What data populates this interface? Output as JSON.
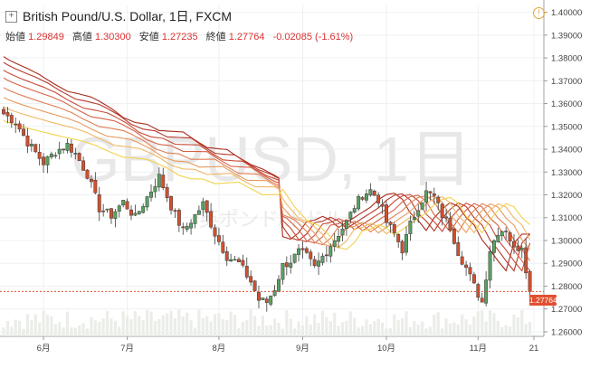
{
  "header": {
    "title": "British Pound/U.S. Dollar, 1日, FXCM",
    "open_label": "始値",
    "open": "1.29849",
    "high_label": "高値",
    "high": "1.30300",
    "low_label": "安値",
    "low": "1.27235",
    "close_label": "終値",
    "close": "1.27764",
    "change": "-0.02085 (-1.61%)"
  },
  "watermark": {
    "symbol": "GBPUSD, 1日",
    "subtitle": "英ポンド/米ドル"
  },
  "last_price_tag": "1.27764",
  "colors": {
    "up": "#5aa062",
    "down": "#d0502e",
    "ribbon_far": "#b03320",
    "ribbon_near": "#f2d24a",
    "grid": "#eef0f3",
    "price_line": "#e05030"
  },
  "icons": {
    "expand": "expand-icon",
    "alert": "alert-icon"
  },
  "chart_data": {
    "type": "candlestick",
    "y_axis": {
      "ticks": [
        "1.40000",
        "1.39000",
        "1.38000",
        "1.37000",
        "1.36000",
        "1.35000",
        "1.34000",
        "1.33000",
        "1.32000",
        "1.31000",
        "1.30000",
        "1.29000",
        "1.28000",
        "1.27000",
        "1.26000"
      ],
      "ylim": [
        1.258,
        1.403
      ]
    },
    "x_axis": {
      "ticks": [
        {
          "label": "6月",
          "index": 10
        },
        {
          "label": "7月",
          "index": 31
        },
        {
          "label": "8月",
          "index": 54
        },
        {
          "label": "9月",
          "index": 75
        },
        {
          "label": "10月",
          "index": 96
        },
        {
          "label": "11月",
          "index": 119
        },
        {
          "label": "21",
          "index": 133
        }
      ],
      "bar_count": 133
    },
    "ribbon": [
      {
        "shade": 0,
        "start": 1.385,
        "end": 1.3002
      },
      {
        "shade": 1,
        "start": 1.382,
        "end": 1.3
      },
      {
        "shade": 2,
        "start": 1.378,
        "end": 1.2998
      },
      {
        "shade": 3,
        "start": 1.374,
        "end": 1.2996
      },
      {
        "shade": 4,
        "start": 1.369,
        "end": 1.2994
      },
      {
        "shade": 5,
        "start": 1.364,
        "end": 1.2992
      },
      {
        "shade": 6,
        "start": 1.359,
        "end": 1.299
      },
      {
        "shade": 7,
        "start": 1.352,
        "end": 1.2988
      }
    ],
    "close_anchors": [
      [
        0,
        1.3555
      ],
      [
        3,
        1.352
      ],
      [
        6,
        1.343
      ],
      [
        10,
        1.334
      ],
      [
        13,
        1.339
      ],
      [
        16,
        1.342
      ],
      [
        18,
        1.338
      ],
      [
        21,
        1.329
      ],
      [
        24,
        1.314
      ],
      [
        27,
        1.311
      ],
      [
        30,
        1.317
      ],
      [
        33,
        1.31
      ],
      [
        36,
        1.319
      ],
      [
        39,
        1.328
      ],
      [
        42,
        1.315
      ],
      [
        45,
        1.304
      ],
      [
        48,
        1.311
      ],
      [
        50,
        1.316
      ],
      [
        53,
        1.303
      ],
      [
        56,
        1.293
      ],
      [
        59,
        1.29
      ],
      [
        62,
        1.282
      ],
      [
        64,
        1.274
      ],
      [
        66,
        1.273
      ],
      [
        68,
        1.279
      ],
      [
        70,
        1.289
      ],
      [
        72,
        1.291
      ],
      [
        74,
        1.295
      ],
      [
        76,
        1.293
      ],
      [
        78,
        1.288
      ],
      [
        80,
        1.293
      ],
      [
        82,
        1.298
      ],
      [
        84,
        1.303
      ],
      [
        86,
        1.308
      ],
      [
        88,
        1.315
      ],
      [
        90,
        1.32
      ],
      [
        92,
        1.322
      ],
      [
        94,
        1.318
      ],
      [
        96,
        1.308
      ],
      [
        98,
        1.303
      ],
      [
        100,
        1.296
      ],
      [
        102,
        1.307
      ],
      [
        104,
        1.315
      ],
      [
        106,
        1.321
      ],
      [
        108,
        1.319
      ],
      [
        110,
        1.311
      ],
      [
        112,
        1.306
      ],
      [
        114,
        1.295
      ],
      [
        116,
        1.288
      ],
      [
        118,
        1.28
      ],
      [
        120,
        1.273
      ],
      [
        122,
        1.296
      ],
      [
        124,
        1.304
      ],
      [
        126,
        1.305
      ],
      [
        128,
        1.296
      ],
      [
        130,
        1.298
      ],
      [
        132,
        1.2776
      ]
    ],
    "volume_note": "volume bars shown faded at bottom",
    "last_price": 1.27764
  }
}
